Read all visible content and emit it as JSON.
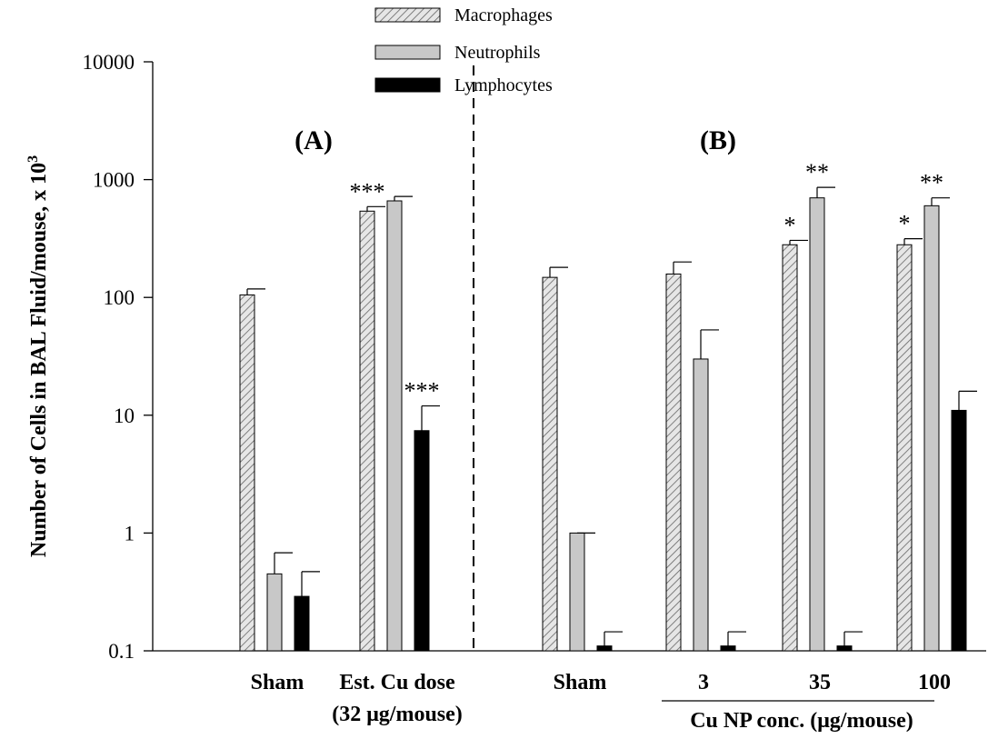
{
  "chart_data": {
    "type": "bar",
    "y_scale": "log",
    "ylim": [
      0.1,
      10000
    ],
    "ylabel_text": "Number of Cells in BAL Fluid/mouse, x 10",
    "ylabel_superscript": "3",
    "yticks": [
      {
        "value": 10000,
        "label": "10000"
      },
      {
        "value": 1000,
        "label": "1000"
      },
      {
        "value": 100,
        "label": "100"
      },
      {
        "value": 10,
        "label": "10"
      },
      {
        "value": 1,
        "label": "1"
      },
      {
        "value": 0.1,
        "label": "0.1"
      }
    ],
    "legend": {
      "position": "top-center",
      "entries": [
        {
          "name": "Macrophages",
          "style": "hatched"
        },
        {
          "name": "Neutrophils",
          "style": "gray"
        },
        {
          "name": "Lymphocytes",
          "style": "black"
        }
      ]
    },
    "panels": [
      {
        "label": "(A)"
      },
      {
        "label": "(B)"
      }
    ],
    "group_span_label": "Cu NP conc. (μg/mouse)",
    "groups": [
      {
        "label": "Sham",
        "label2": "",
        "panel": 0,
        "values": [
          105,
          0.45,
          0.29
        ],
        "errors": [
          118,
          0.68,
          0.47
        ],
        "sig": [
          "",
          "",
          ""
        ]
      },
      {
        "label": "Est. Cu dose",
        "label2": "(32 μg/mouse)",
        "panel": 0,
        "values": [
          540,
          660,
          7.4
        ],
        "errors": [
          590,
          720,
          12
        ],
        "sig": [
          "***",
          "",
          "***"
        ]
      },
      {
        "label": "Sham",
        "label2": "",
        "panel": 1,
        "values": [
          148,
          1.0,
          0.11
        ],
        "errors": [
          180,
          1.0,
          0.145
        ],
        "sig": [
          "",
          "",
          ""
        ]
      },
      {
        "label": "3",
        "label2": "",
        "panel": 1,
        "values": [
          158,
          30,
          0.11
        ],
        "errors": [
          200,
          53,
          0.145
        ],
        "sig": [
          "",
          "",
          ""
        ]
      },
      {
        "label": "35",
        "label2": "",
        "panel": 1,
        "values": [
          280,
          700,
          0.11
        ],
        "errors": [
          305,
          860,
          0.145
        ],
        "sig": [
          "*",
          "**",
          ""
        ]
      },
      {
        "label": "100",
        "label2": "",
        "panel": 1,
        "values": [
          280,
          600,
          11
        ],
        "errors": [
          315,
          700,
          16
        ],
        "sig": [
          "*",
          "**",
          ""
        ]
      }
    ],
    "colors": {
      "macrophage_fill": "#e6e6e6",
      "hatch": "#666666",
      "neutrophil_fill": "#c8c8c8",
      "lymphocyte_fill": "#000000",
      "axis": "#000000"
    }
  }
}
